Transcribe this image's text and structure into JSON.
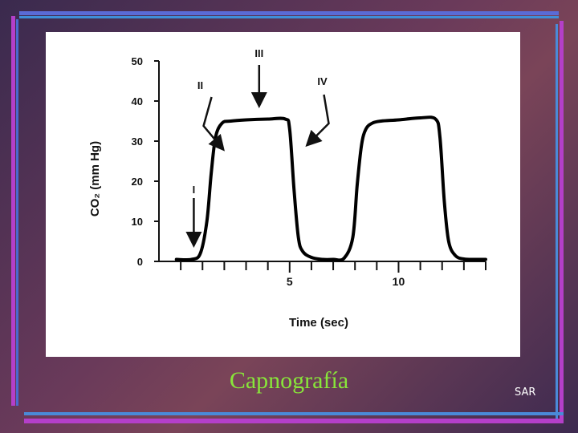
{
  "slide": {
    "caption": "Capnografía",
    "footer": "SAR"
  },
  "colors": {
    "caption": "#88e63a",
    "frame_purple": "#b43fc9",
    "frame_blue": "#4a8ad8",
    "curve": "#000000"
  },
  "chart_data": {
    "type": "line",
    "xlabel": "Time (sec)",
    "ylabel": "CO₂ (mm Hg)",
    "xlim": [
      -1,
      14
    ],
    "ylim": [
      0,
      50
    ],
    "x_ticks": [
      {
        "value": 5,
        "label": "5"
      },
      {
        "value": 10,
        "label": "10"
      }
    ],
    "y_ticks": [
      {
        "value": 0,
        "label": "0"
      },
      {
        "value": 10,
        "label": "10"
      },
      {
        "value": 20,
        "label": "20"
      },
      {
        "value": 30,
        "label": "30"
      },
      {
        "value": 40,
        "label": "40"
      },
      {
        "value": 50,
        "label": "50"
      }
    ],
    "grid": false,
    "series": [
      {
        "x": [
          -0.2,
          0.5,
          0.9,
          1.2,
          1.4,
          1.6,
          1.9,
          2.3,
          3.0,
          4.0,
          4.8,
          5.0,
          5.2,
          5.4,
          5.6,
          6.0,
          6.5,
          7.0,
          7.5,
          7.9,
          8.1,
          8.3,
          8.5,
          8.8,
          9.2,
          10.0,
          11.0,
          11.7,
          11.9,
          12.1,
          12.3,
          12.6,
          13.0,
          13.6,
          14.0
        ],
        "y": [
          0.5,
          0.5,
          2,
          10,
          22,
          31,
          34.5,
          35,
          35.3,
          35.5,
          35.5,
          33,
          18,
          6,
          2.5,
          1,
          0.5,
          0.5,
          0.8,
          6,
          19,
          29,
          33,
          34.5,
          35,
          35.3,
          35.8,
          35.5,
          31,
          15,
          5,
          1.5,
          0.6,
          0.5,
          0.5
        ]
      }
    ],
    "annotations": [
      {
        "label": "I",
        "x": 0.6,
        "y": 17
      },
      {
        "label": "II",
        "x": 0.9,
        "y": 43
      },
      {
        "label": "III",
        "x": 3.6,
        "y": 51
      },
      {
        "label": "IV",
        "x": 6.5,
        "y": 44
      }
    ]
  }
}
